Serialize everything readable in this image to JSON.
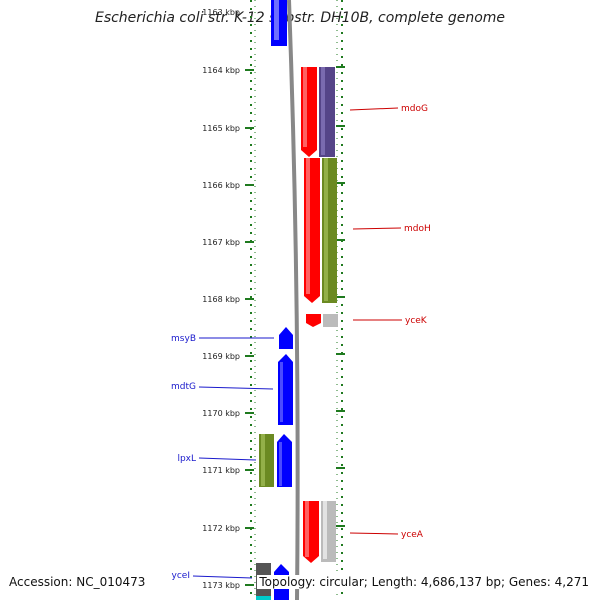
{
  "title": "Escherichia coli str. K-12 substr. DH10B, complete genome",
  "ruler": {
    "top_label": "1163 kbp",
    "ticks": [
      "1164 kbp",
      "1165 kbp",
      "1166 kbp",
      "1167 kbp",
      "1168 kbp",
      "1169 kbp",
      "1170 kbp",
      "1171 kbp",
      "1172 kbp",
      "1173 kbp"
    ]
  },
  "genes_forward": [
    {
      "name": "mdoG",
      "color": "#dd2222"
    },
    {
      "name": "mdoH",
      "color": "#dd2222"
    },
    {
      "name": "yceK",
      "color": "#dd2222"
    },
    {
      "name": "yceA",
      "color": "#dd2222"
    }
  ],
  "genes_reverse": [
    {
      "name": "msyB",
      "color": "#1a1acc"
    },
    {
      "name": "mdtG",
      "color": "#1a1acc"
    },
    {
      "name": "lpxL",
      "color": "#1a1acc"
    },
    {
      "name": "yceI",
      "color": "#1a1acc"
    }
  ],
  "colors": {
    "forward_strand": "#ff0000",
    "reverse_strand": "#0000ff",
    "cog_purple": "#554488",
    "cog_olive": "#6b8a22",
    "cog_gray": "#bbbbbb",
    "backbone": "#888888",
    "ruler": "#1f7a1f"
  },
  "footer": {
    "accession": "Accession: NC_010473",
    "summary": "Topology: circular; Length: 4,686,137 bp; Genes: 4,271"
  }
}
